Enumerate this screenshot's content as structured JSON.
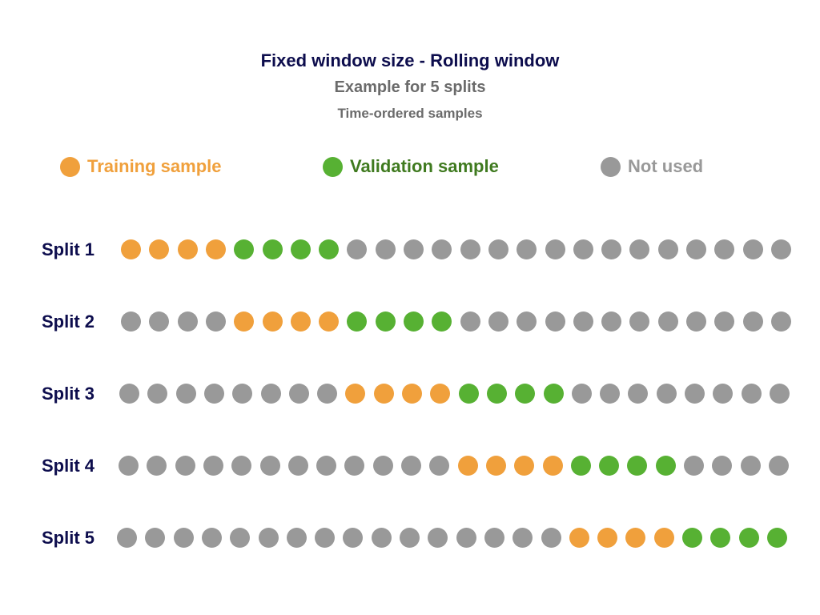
{
  "header": {
    "title": "Fixed window size - Rolling window",
    "subtitle": "Example for 5 splits",
    "axis_note": "Time-ordered samples"
  },
  "legend": {
    "training": {
      "label": "Training sample",
      "color": "#f0a03c"
    },
    "validation": {
      "label": "Validation sample",
      "color": "#57b133"
    },
    "not_used": {
      "label": "Not used",
      "color": "#999999"
    }
  },
  "legend_text_colors": {
    "training": "#f0a03c",
    "validation": "#3f7a1f",
    "not_used": "#999999"
  },
  "samples_per_split": 24,
  "splits": [
    {
      "label": "Split 1",
      "train_start": 0,
      "train_count": 4,
      "val_count": 4
    },
    {
      "label": "Split 2",
      "train_start": 4,
      "train_count": 4,
      "val_count": 4
    },
    {
      "label": "Split 3",
      "train_start": 8,
      "train_count": 4,
      "val_count": 4
    },
    {
      "label": "Split 4",
      "train_start": 12,
      "train_count": 4,
      "val_count": 4
    },
    {
      "label": "Split 5",
      "train_start": 16,
      "train_count": 4,
      "val_count": 4
    }
  ]
}
